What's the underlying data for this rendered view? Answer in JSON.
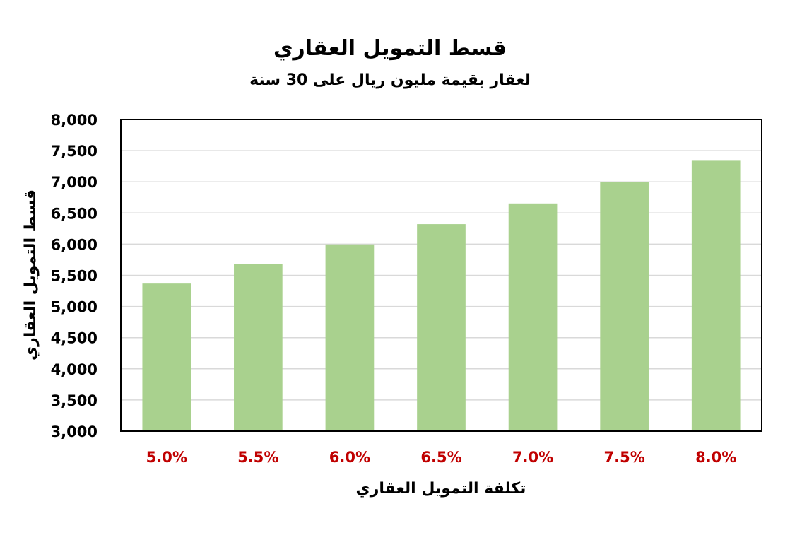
{
  "chart_data": {
    "type": "bar",
    "title": "قسط التمويل العقاري",
    "subtitle": "لعقار بقيمة مليون ريال على 30 سنة",
    "xlabel": "تكلفة التمويل العقاري",
    "ylabel": "قسط التمويل العقاري",
    "categories": [
      "5.0%",
      "5.5%",
      "6.0%",
      "6.5%",
      "7.0%",
      "7.5%",
      "8.0%"
    ],
    "values": [
      5368,
      5678,
      5996,
      6321,
      6653,
      6992,
      7338
    ],
    "ylim": [
      3000,
      8000
    ],
    "yticks": [
      "3,000",
      "3,500",
      "4,000",
      "4,500",
      "5,000",
      "5,500",
      "6,000",
      "6,500",
      "7,000",
      "7,500",
      "8,000"
    ],
    "grid": true,
    "legend": "none",
    "colors": {
      "bar": "#a9d18e",
      "category_label": "#c00000",
      "grid": "#d9d9d9",
      "axis": "#000000",
      "text": "#000000"
    }
  }
}
